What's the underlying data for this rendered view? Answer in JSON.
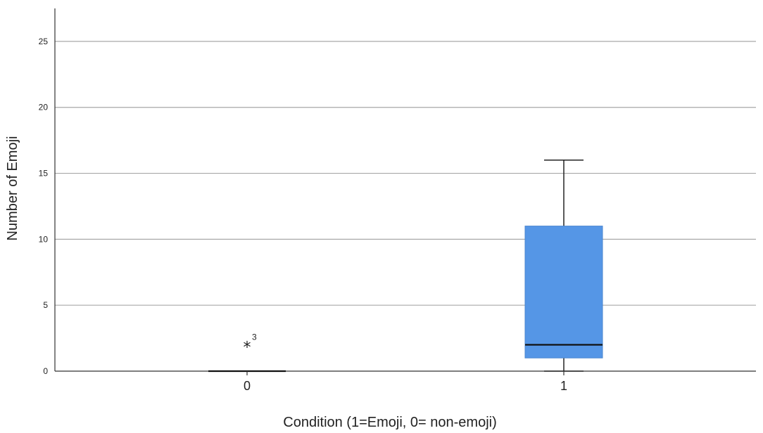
{
  "chart_data": {
    "type": "box",
    "title": "",
    "xlabel": "Condition (1=Emoji, 0= non-emoji)",
    "ylabel": "Number of Emoji",
    "ylim": [
      0,
      27.5
    ],
    "y_ticks": [
      0,
      5,
      10,
      15,
      20,
      25
    ],
    "grid": "horizontal",
    "box_color": "#5596e6",
    "box_edge_color": "#4a86cf",
    "categories": [
      "0",
      "1"
    ],
    "boxes": [
      {
        "category": "0",
        "min": 0,
        "q1": 0,
        "median": 0,
        "q3": 0,
        "max": 0,
        "outliers": [
          {
            "value": 2,
            "marker": "*",
            "label": "3"
          }
        ]
      },
      {
        "category": "1",
        "min": 0,
        "q1": 1,
        "median": 2,
        "q3": 11,
        "max": 16,
        "outliers": []
      }
    ]
  }
}
